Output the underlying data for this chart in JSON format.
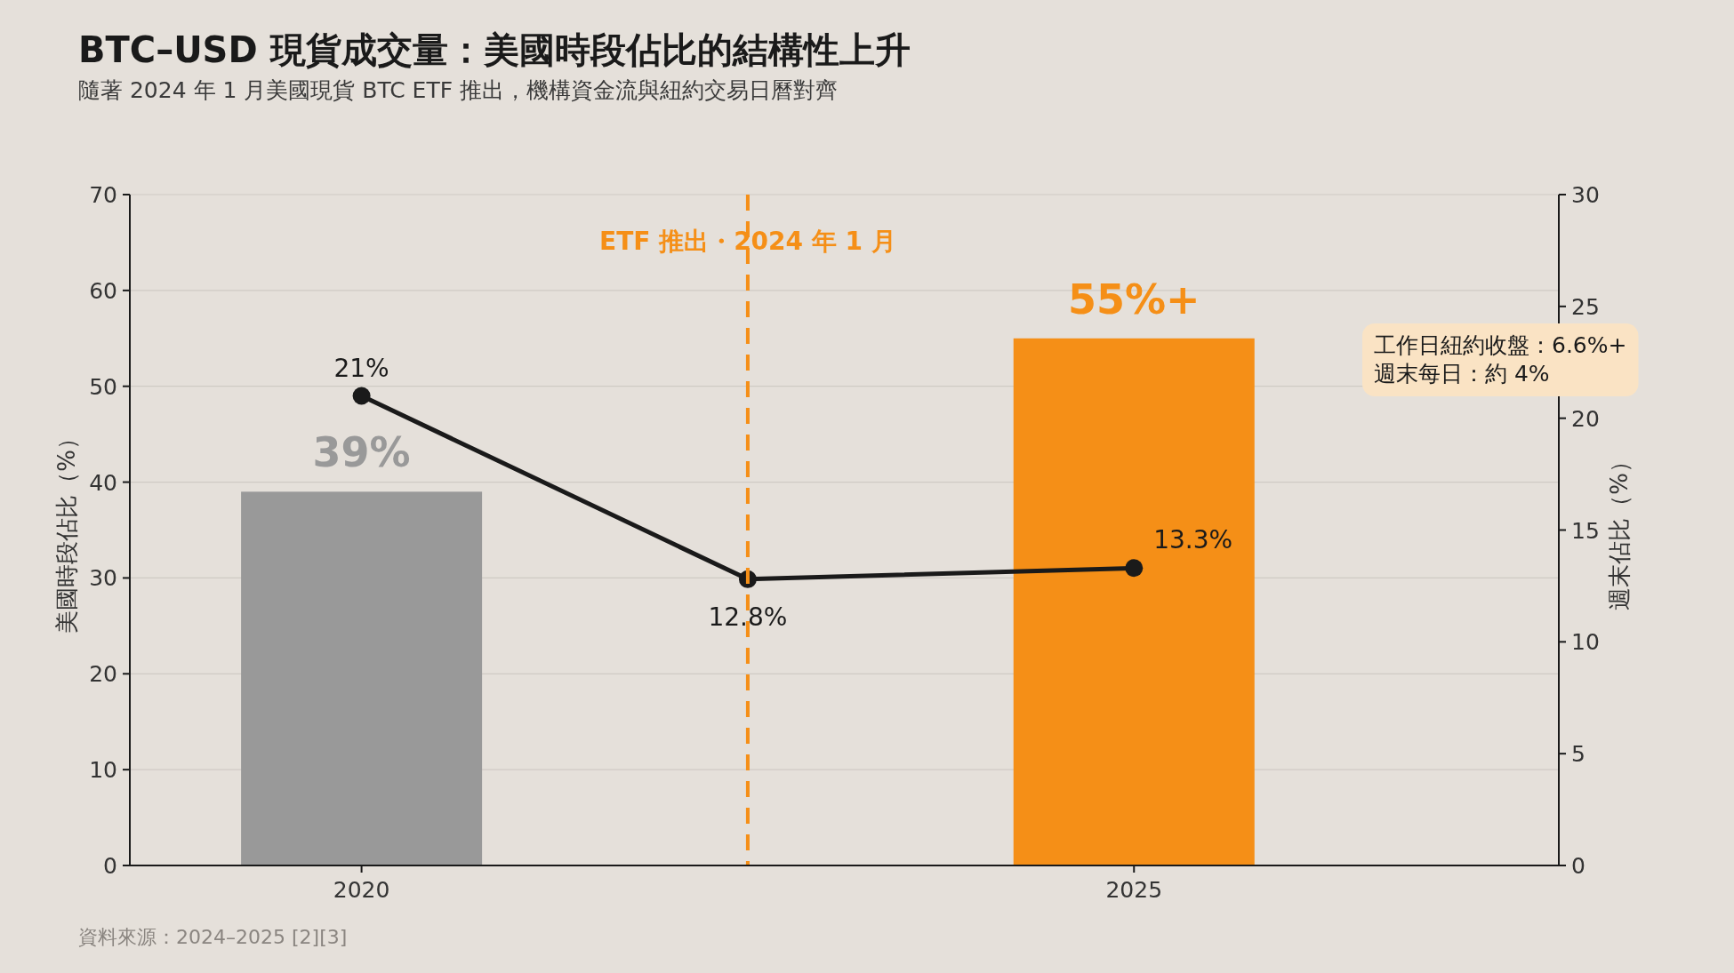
{
  "chart_data": {
    "type": "bar",
    "title": "BTC–USD 現貨成交量：美國時段佔比的結構性上升",
    "subtitle": "隨著 2024 年 1 月美國現貨 BTC ETF 推出，機構資金流與紐約交易日曆對齊",
    "ylabel": "美國時段佔比（%）",
    "y2label": "週末佔比（%）",
    "annotations": [
      "資料來源：2024–2025 [2][3]",
      "工作日紐約收盤：6.6%+",
      "週末每日：約 4%"
    ],
    "xlim": [
      2018.5,
      2027.75
    ],
    "xticks": [
      2020,
      2025
    ],
    "ylim": [
      0,
      70
    ],
    "yticks": [
      0,
      10,
      20,
      30,
      40,
      50,
      60,
      70
    ],
    "y2lim": [
      0,
      30
    ],
    "y2ticks": [
      0,
      5,
      10,
      15,
      20,
      25,
      30
    ],
    "grid": "y",
    "marker": "circle",
    "ref_lines": [
      {
        "axis": "x",
        "value": 2022.5,
        "label": "ETF 推出・2024 年 1 月",
        "color": "#f58f17",
        "line_style": "dashed"
      }
    ],
    "series": [
      {
        "x": [
          2020,
          2025
        ],
        "values": [
          39,
          55
        ],
        "colors": [
          "#999999",
          "#f58f17"
        ],
        "value_labels": [
          "39%",
          "55%+"
        ]
      },
      {
        "type": "line",
        "axis": "y2",
        "x": [
          2020,
          2022.5,
          2025
        ],
        "values": [
          21,
          12.8,
          13.3
        ],
        "color": "#1a1a1a",
        "value_labels": [
          "21%",
          "12.8%",
          "13.3%"
        ]
      }
    ]
  }
}
